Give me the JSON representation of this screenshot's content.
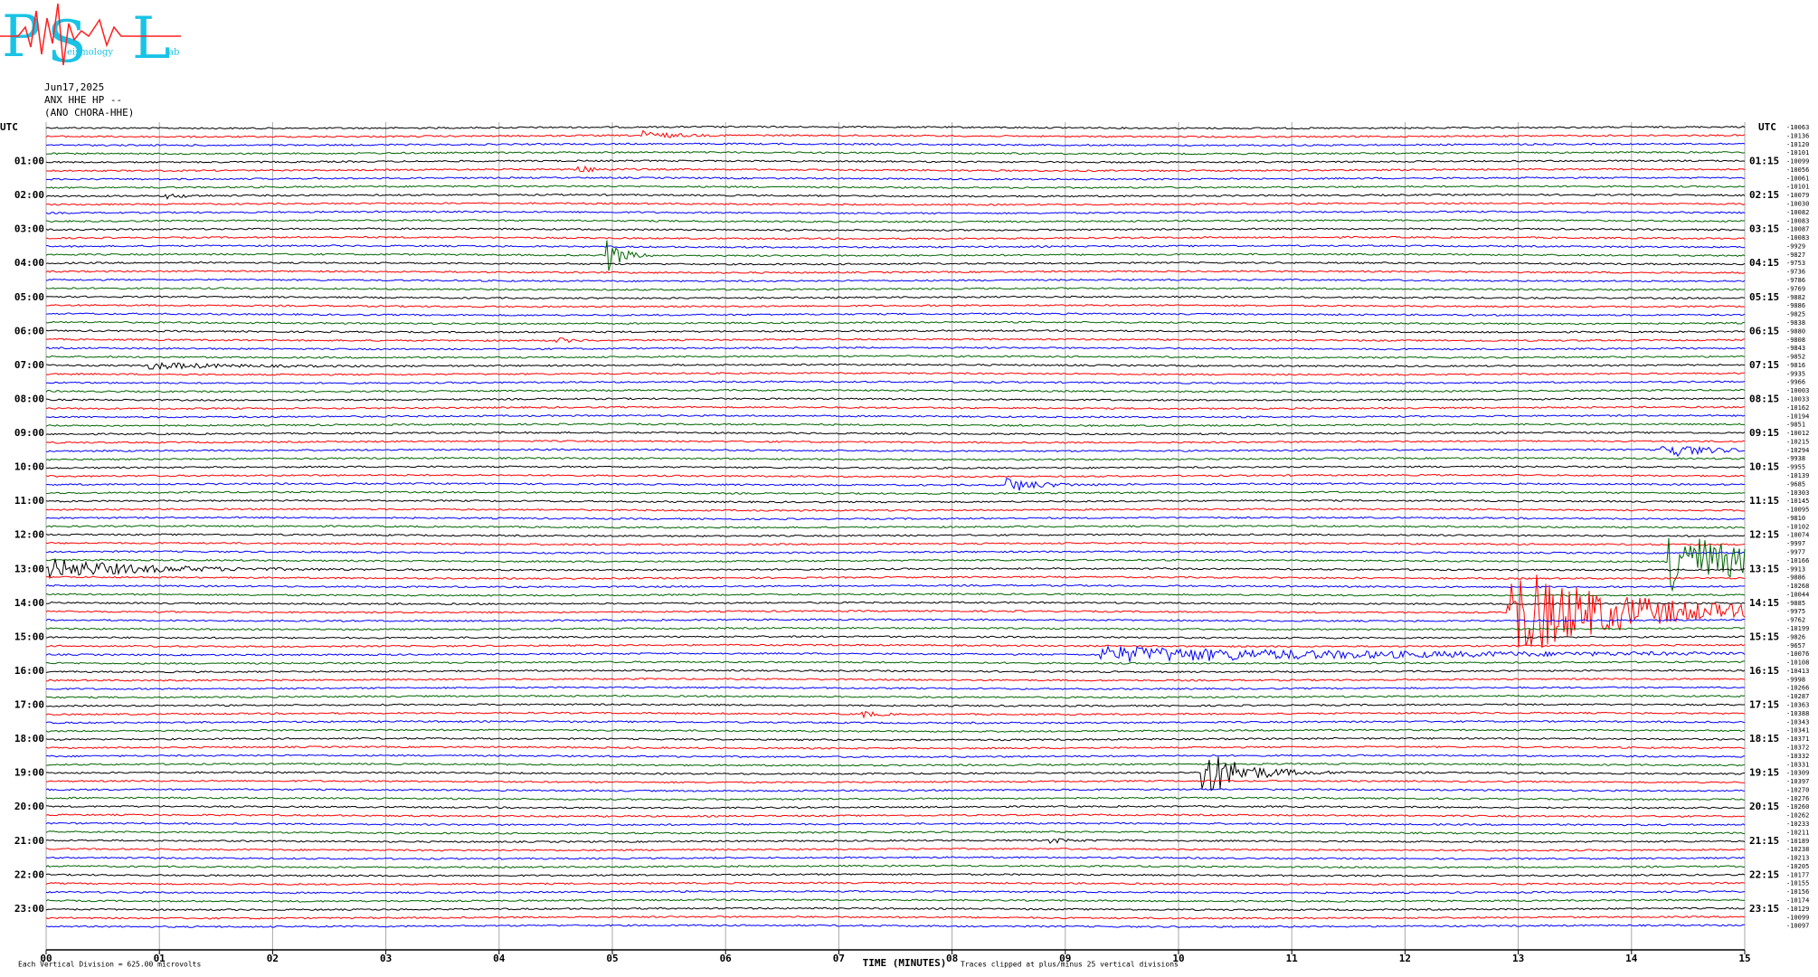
{
  "logo": {
    "letters": [
      "P",
      "S",
      "L"
    ],
    "subtext": [
      "eismology",
      "ab"
    ]
  },
  "header": {
    "date": "Jun17,2025",
    "station": "ANX HHE HP --",
    "location": "(ANO CHORA-HHE)"
  },
  "chart_data": {
    "type": "helicorder",
    "x_label": "TIME (MINUTES)",
    "xlim": [
      0,
      15
    ],
    "xticks": [
      {
        "value": 0,
        "label": "00"
      },
      {
        "value": 1,
        "label": "01"
      },
      {
        "value": 2,
        "label": "02"
      },
      {
        "value": 3,
        "label": "03"
      },
      {
        "value": 4,
        "label": "04"
      },
      {
        "value": 5,
        "label": "05"
      },
      {
        "value": 6,
        "label": "06"
      },
      {
        "value": 7,
        "label": "07"
      },
      {
        "value": 8,
        "label": "08"
      },
      {
        "value": 9,
        "label": "09"
      },
      {
        "value": 10,
        "label": "10"
      },
      {
        "value": 11,
        "label": "11"
      },
      {
        "value": 12,
        "label": "12"
      },
      {
        "value": 13,
        "label": "13"
      },
      {
        "value": 14,
        "label": "14"
      },
      {
        "value": 15,
        "label": "15"
      }
    ],
    "grid": true,
    "left_label": "UTC",
    "right_label": "UTC",
    "hour_labels": [
      "01:00",
      "02:00",
      "03:00",
      "04:00",
      "05:00",
      "06:00",
      "07:00",
      "08:00",
      "09:00",
      "10:00",
      "11:00",
      "12:00",
      "13:00",
      "14:00",
      "15:00",
      "16:00",
      "17:00",
      "18:00",
      "19:00",
      "20:00",
      "21:00",
      "22:00",
      "23:00"
    ],
    "hour_labels_right": [
      "01:15",
      "02:15",
      "03:15",
      "04:15",
      "05:15",
      "06:15",
      "07:15",
      "08:15",
      "09:15",
      "10:15",
      "11:15",
      "12:15",
      "13:15",
      "14:15",
      "15:15",
      "16:15",
      "17:15",
      "18:15",
      "19:15",
      "20:15",
      "21:15",
      "22:15",
      "23:15"
    ],
    "trace_offsets": [
      -10063,
      -10136,
      -10120,
      -10101,
      -10099,
      -10056,
      -10061,
      -10101,
      -10079,
      -10030,
      -10082,
      -10083,
      -10087,
      -10083,
      -9929,
      -9827,
      -9753,
      -9736,
      -9786,
      -9769,
      -9882,
      -9886,
      -9825,
      -9838,
      -9880,
      -9808,
      -9843,
      -9852,
      -9816,
      -9935,
      -9966,
      -10003,
      -10033,
      -10162,
      -10194,
      -9851,
      -10012,
      -10215,
      -10294,
      -9938,
      -9955,
      -10139,
      -9685,
      -10303,
      -10145,
      -10095,
      -9810,
      -10102,
      -10074,
      -9997,
      -9977,
      -10166,
      -9913,
      -9886,
      -10268,
      -10044,
      -9885,
      -9975,
      -9762,
      -10199,
      -9826,
      -9657,
      -10076,
      -10108,
      -10413,
      -9998,
      -10266,
      -10287,
      -10363,
      -10388,
      -10343,
      -10341,
      -10371,
      -10372,
      -10332,
      -10331,
      -10309,
      -10397,
      -10270,
      -10276,
      -10260,
      -10262,
      -10233,
      -10211,
      -10189,
      -10238,
      -10213,
      -10205,
      -10177,
      -10155,
      -10156,
      -10174,
      -10129,
      -10099,
      -10097
    ],
    "colors": [
      "#000000",
      "#ff0000",
      "#0000ff",
      "#006400"
    ],
    "footer_left": "Each Vertical Division =  625.00 microvolts",
    "footer_right": "Traces clipped at plus/minus 25 vertical divisions"
  }
}
